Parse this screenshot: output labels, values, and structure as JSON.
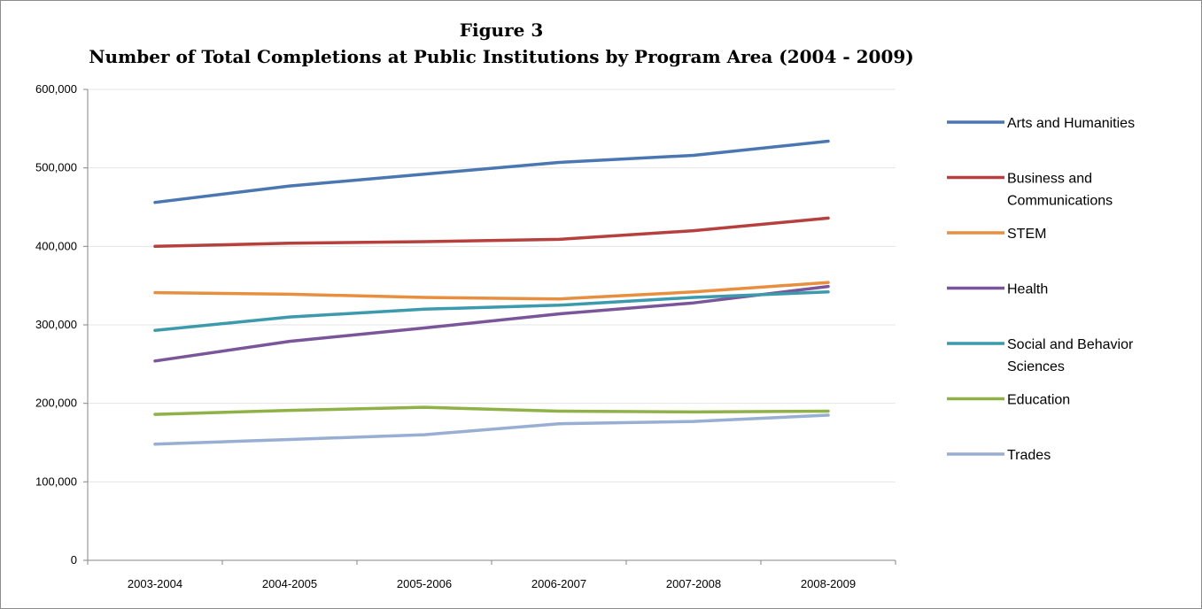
{
  "chart_data": {
    "type": "line",
    "title": "Figure 3",
    "subtitle": "Number of  Total Completions at Public Institutions by Program Area (2004 - 2009)",
    "xlabel": "",
    "ylabel": "",
    "categories": [
      "2003-2004",
      "2004-2005",
      "2005-2006",
      "2006-2007",
      "2007-2008",
      "2008-2009"
    ],
    "ylim": [
      0,
      600000
    ],
    "yticks": [
      0,
      100000,
      200000,
      300000,
      400000,
      500000,
      600000
    ],
    "ytick_labels": [
      "0",
      "100,000",
      "200,000",
      "300,000",
      "400,000",
      "500,000",
      "600,000"
    ],
    "grid": true,
    "legend_position": "right",
    "series": [
      {
        "name": "Arts and Humanities",
        "legend_lines": [
          "Arts and Humanities"
        ],
        "color": "#4a77b1",
        "values": [
          456000,
          477000,
          492000,
          507000,
          516000,
          534000
        ]
      },
      {
        "name": "Business and Communications",
        "legend_lines": [
          "Business and",
          "Communications"
        ],
        "color": "#b5403d",
        "values": [
          400000,
          404000,
          406000,
          409000,
          420000,
          436000
        ]
      },
      {
        "name": "STEM",
        "legend_lines": [
          "STEM"
        ],
        "color": "#e88e3f",
        "values": [
          341000,
          339000,
          335000,
          333000,
          342000,
          354000
        ]
      },
      {
        "name": "Health",
        "legend_lines": [
          "Health"
        ],
        "color": "#7a559a",
        "values": [
          254000,
          279000,
          296000,
          314000,
          328000,
          349000
        ]
      },
      {
        "name": "Social and Behavior Sciences",
        "legend_lines": [
          "Social and Behavior",
          "Sciences"
        ],
        "color": "#3c9aad",
        "values": [
          293000,
          310000,
          320000,
          325000,
          335000,
          342000
        ]
      },
      {
        "name": "Education",
        "legend_lines": [
          "Education"
        ],
        "color": "#8fb147",
        "values": [
          186000,
          191000,
          195000,
          190000,
          189000,
          190000
        ]
      },
      {
        "name": "Trades",
        "legend_lines": [
          "Trades"
        ],
        "color": "#98aed3",
        "values": [
          148000,
          154000,
          160000,
          174000,
          177000,
          185000
        ]
      }
    ]
  }
}
